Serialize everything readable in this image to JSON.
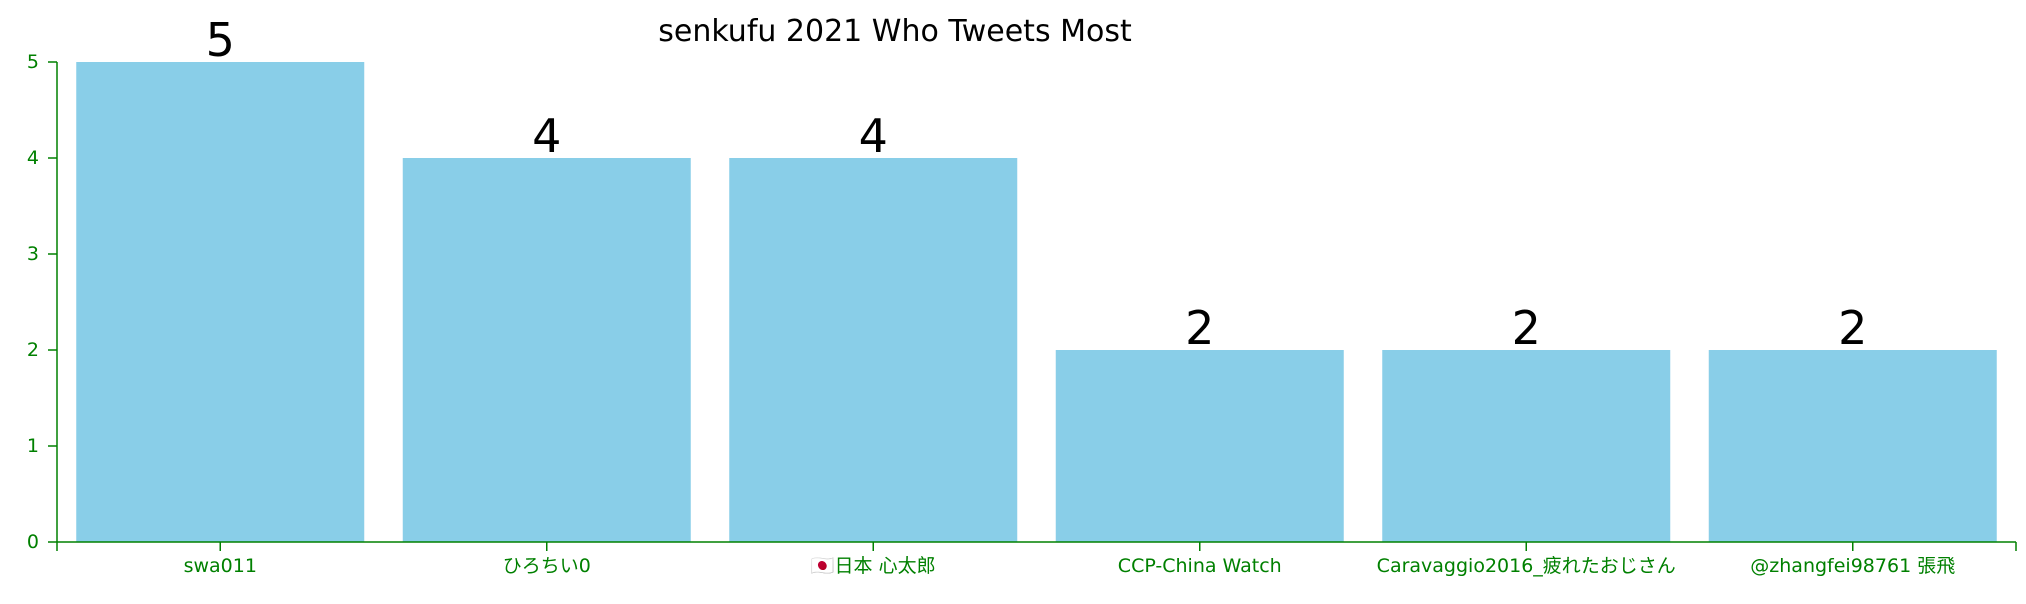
{
  "chart_data": {
    "type": "bar",
    "title": "senkufu 2021 Who Tweets Most",
    "xlabel": "",
    "ylabel": "",
    "categories": [
      "swa011",
      "ひろちい0",
      "🇯🇵日本 心太郎",
      "CCP-China Watch",
      "Caravaggio2016_疲れたおじさん",
      "@zhangfei98761 張飛"
    ],
    "values": [
      5,
      4,
      4,
      2,
      2,
      2
    ],
    "ylim": [
      0,
      5
    ],
    "yticks": [
      0,
      1,
      2,
      3,
      4,
      5
    ],
    "grid": false,
    "legend": "none",
    "data_labels": true
  },
  "colors": {
    "bar": "#89CEE8",
    "axis": "#008000",
    "text": "#000000"
  }
}
